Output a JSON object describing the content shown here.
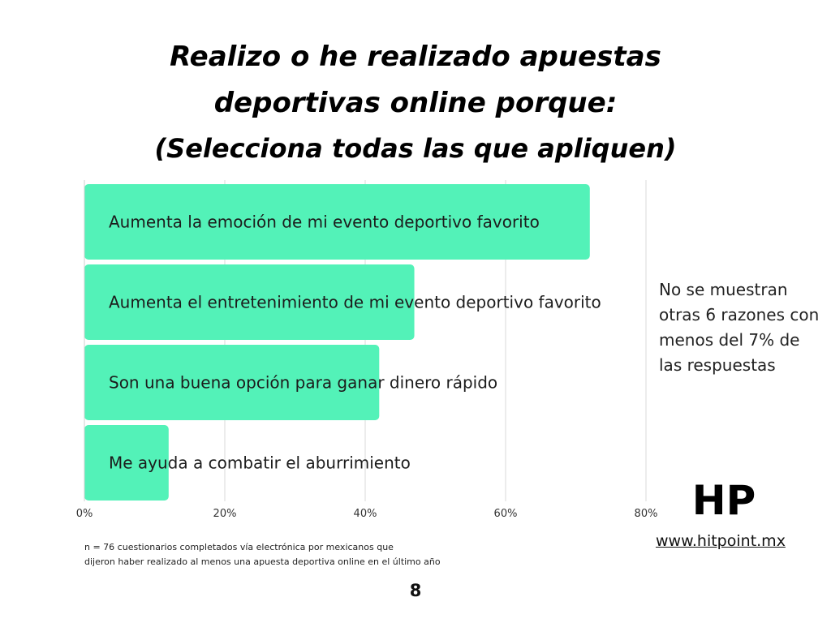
{
  "title": {
    "line1": "Realizo o he realizado apuestas",
    "line2": "deportivas online porque:",
    "line3": "(Selecciona todas las que apliquen)"
  },
  "chart_data": {
    "type": "bar",
    "orientation": "horizontal",
    "categories": [
      "Aumenta la emoción de mi evento deportivo favorito",
      "Aumenta el entretenimiento de mi evento deportivo favorito",
      "Son una buena opción para ganar dinero rápido",
      "Me ayuda a combatir el aburrimiento"
    ],
    "values": [
      72,
      47,
      42,
      12
    ],
    "xticks": [
      "0%",
      "20%",
      "40%",
      "60%",
      "80%"
    ],
    "xlim": [
      0,
      80
    ],
    "grid": true,
    "bar_color": "#53f2b8",
    "grid_color": "#d9d9d9"
  },
  "note": "No se muestran otras 6 razones con menos del 7% de las respuestas",
  "logo": {
    "text": "HP"
  },
  "website": "www.hitpoint.mx",
  "footnote": {
    "line1": "n = 76 cuestionarios completados vía electrónica por mexicanos que",
    "line2": "dijeron haber realizado al menos una apuesta deportiva online en el último año"
  },
  "page_number": "8"
}
